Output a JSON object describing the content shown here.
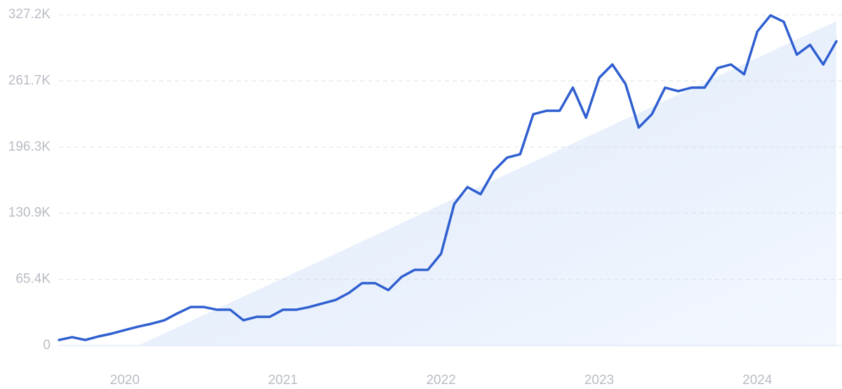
{
  "chart_data": {
    "type": "line",
    "categories": [
      null,
      null,
      null,
      null,
      null,
      "2020",
      null,
      null,
      null,
      null,
      null,
      null,
      null,
      null,
      null,
      null,
      null,
      "2021",
      null,
      null,
      null,
      null,
      null,
      null,
      null,
      null,
      null,
      null,
      null,
      "2022",
      null,
      null,
      null,
      null,
      null,
      null,
      null,
      null,
      null,
      null,
      null,
      "2023",
      null,
      null,
      null,
      null,
      null,
      null,
      null,
      null,
      null,
      null,
      null,
      "2024",
      null,
      null,
      null,
      null,
      null,
      null
    ],
    "series": [
      {
        "color": "#2f5fd0",
        "values": [
          5500,
          8300,
          5500,
          9000,
          11800,
          15300,
          18700,
          21500,
          25000,
          31900,
          38100,
          38100,
          35400,
          35400,
          25000,
          28400,
          28400,
          35400,
          35400,
          38100,
          41600,
          45100,
          52000,
          61700,
          61700,
          54800,
          67900,
          74900,
          74900,
          90800,
          140000,
          156700,
          149700,
          172600,
          185800,
          189200,
          228800,
          232200,
          232200,
          255100,
          225300,
          264800,
          278000,
          258600,
          215600,
          228800,
          255100,
          251600,
          255100,
          255100,
          274500,
          278000,
          268300,
          310600,
          326500,
          320300,
          287700,
          297400,
          278000,
          300900
        ]
      }
    ],
    "trend": {
      "color": "#e3eefc",
      "values": [
        null,
        null,
        null,
        null,
        null,
        null,
        0,
        null,
        null,
        null,
        null,
        null,
        null,
        null,
        null,
        null,
        null,
        null,
        null,
        null,
        null,
        null,
        null,
        null,
        null,
        null,
        null,
        null,
        null,
        null,
        null,
        null,
        null,
        null,
        null,
        null,
        null,
        null,
        null,
        null,
        null,
        null,
        null,
        null,
        null,
        null,
        null,
        null,
        null,
        null,
        null,
        null,
        null,
        null,
        null,
        null,
        null,
        null,
        null,
        320900
      ]
    },
    "ylim": [
      0,
      327200
    ],
    "yticks": [
      0,
      {
        "value": 65400,
        "label": "65.4K"
      },
      {
        "value": 130900,
        "label": "130.9K"
      },
      {
        "value": 196300,
        "label": "196.3K"
      },
      {
        "value": 261700,
        "label": "261.7K"
      },
      {
        "value": 327200,
        "label": "327.2K"
      }
    ],
    "grid": true
  }
}
